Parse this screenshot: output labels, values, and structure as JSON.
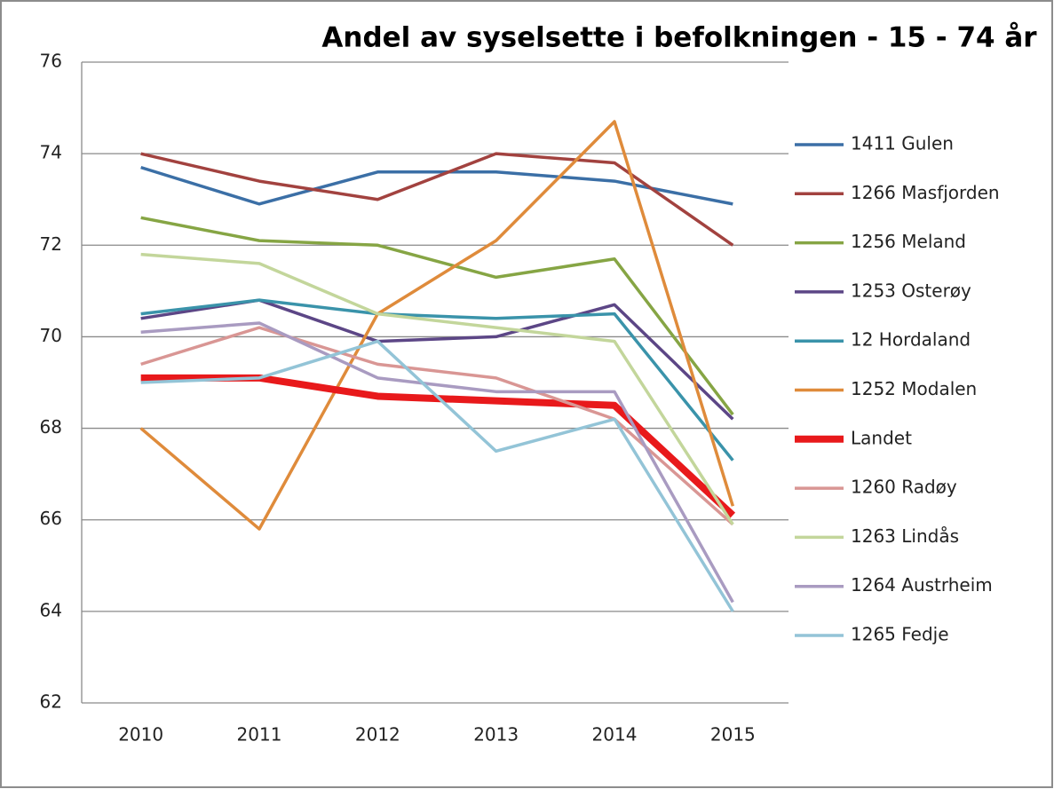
{
  "chart_data": {
    "type": "line",
    "title": "Andel av syselsette i befolkningen - 15 - 74 år",
    "categories": [
      "2010",
      "2011",
      "2012",
      "2013",
      "2014",
      "2015"
    ],
    "ylim": [
      62,
      76
    ],
    "yticks": [
      62,
      64,
      66,
      68,
      70,
      72,
      74,
      76
    ],
    "grid": true,
    "legend": "right",
    "series": [
      {
        "name": "1411 Gulen",
        "color": "#3b6fa6",
        "width": 3.5,
        "values": [
          73.7,
          72.9,
          73.6,
          73.6,
          73.4,
          72.9
        ]
      },
      {
        "name": "1266 Masfjorden",
        "color": "#a2423f",
        "width": 3.5,
        "values": [
          74.0,
          73.4,
          73.0,
          74.0,
          73.8,
          72.0
        ]
      },
      {
        "name": "1256 Meland",
        "color": "#86a544",
        "width": 3.5,
        "values": [
          72.6,
          72.1,
          72.0,
          71.3,
          71.7,
          68.3
        ]
      },
      {
        "name": "1253 Osterøy",
        "color": "#5c4686",
        "width": 3.5,
        "values": [
          70.4,
          70.8,
          69.9,
          70.0,
          70.7,
          68.2
        ]
      },
      {
        "name": "12 Hordaland",
        "color": "#3a93aa",
        "width": 3.5,
        "values": [
          70.5,
          70.8,
          70.5,
          70.4,
          70.5,
          67.3
        ]
      },
      {
        "name": "1252 Modalen",
        "color": "#df8b3b",
        "width": 3.5,
        "values": [
          68.0,
          65.8,
          70.5,
          72.1,
          74.7,
          66.3
        ]
      },
      {
        "name": "Landet",
        "color": "#e8191b",
        "width": 8,
        "values": [
          69.1,
          69.1,
          68.7,
          68.6,
          68.5,
          66.1
        ]
      },
      {
        "name": "1260 Radøy",
        "color": "#d99694",
        "width": 3.5,
        "values": [
          69.4,
          70.2,
          69.4,
          69.1,
          68.2,
          65.9
        ]
      },
      {
        "name": "1263 Lindås",
        "color": "#c3d69b",
        "width": 3.5,
        "values": [
          71.8,
          71.6,
          70.5,
          70.2,
          69.9,
          65.9
        ]
      },
      {
        "name": "1264 Austrheim",
        "color": "#a99bc1",
        "width": 3.5,
        "values": [
          70.1,
          70.3,
          69.1,
          68.8,
          68.8,
          64.2
        ]
      },
      {
        "name": "1265 Fedje",
        "color": "#93c4d7",
        "width": 3.5,
        "values": [
          69.0,
          69.1,
          69.9,
          67.5,
          68.2,
          64.0
        ]
      }
    ]
  }
}
